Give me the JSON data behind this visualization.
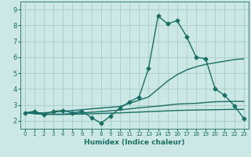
{
  "xlabel": "Humidex (Indice chaleur)",
  "xlim": [
    -0.5,
    23.5
  ],
  "ylim": [
    1.5,
    9.5
  ],
  "bg_color": "#cce8e4",
  "grid_color": "#aaccca",
  "line_color": "#1a6e65",
  "line_width": 1.0,
  "marker": "D",
  "marker_size": 2.5,
  "xticks": [
    0,
    1,
    2,
    3,
    4,
    5,
    6,
    7,
    8,
    9,
    10,
    11,
    12,
    13,
    14,
    15,
    16,
    17,
    18,
    19,
    20,
    21,
    22,
    23
  ],
  "yticks": [
    2,
    3,
    4,
    5,
    6,
    7,
    8,
    9
  ],
  "series": [
    {
      "x": [
        0,
        1,
        2,
        3,
        4,
        5,
        6,
        7,
        8,
        9,
        10,
        11,
        12,
        13,
        14,
        15,
        16,
        17,
        18,
        19,
        20,
        21,
        22,
        23
      ],
      "y": [
        2.5,
        2.6,
        2.4,
        2.6,
        2.65,
        2.5,
        2.6,
        2.2,
        1.85,
        2.3,
        2.8,
        3.2,
        3.5,
        5.3,
        8.6,
        8.1,
        8.3,
        7.3,
        6.0,
        5.9,
        4.0,
        3.6,
        2.95,
        2.15
      ],
      "has_markers": true
    },
    {
      "x": [
        0,
        2,
        10,
        13,
        14,
        15,
        16,
        17,
        18,
        19,
        20,
        21,
        22,
        23
      ],
      "y": [
        2.5,
        2.5,
        2.9,
        3.5,
        4.0,
        4.5,
        4.9,
        5.2,
        5.4,
        5.55,
        5.65,
        5.75,
        5.85,
        5.9
      ],
      "has_markers": false
    },
    {
      "x": [
        0,
        2,
        4,
        6,
        8,
        10,
        12,
        14,
        16,
        18,
        20,
        22,
        23
      ],
      "y": [
        2.5,
        2.42,
        2.42,
        2.5,
        2.58,
        2.68,
        2.82,
        2.92,
        3.05,
        3.1,
        3.2,
        3.22,
        3.22
      ],
      "has_markers": false
    },
    {
      "x": [
        0,
        2,
        4,
        6,
        8,
        10,
        12,
        14,
        16,
        18,
        20,
        22,
        23
      ],
      "y": [
        2.5,
        2.4,
        2.4,
        2.42,
        2.46,
        2.5,
        2.55,
        2.6,
        2.65,
        2.68,
        2.7,
        2.72,
        2.72
      ],
      "has_markers": false
    }
  ]
}
